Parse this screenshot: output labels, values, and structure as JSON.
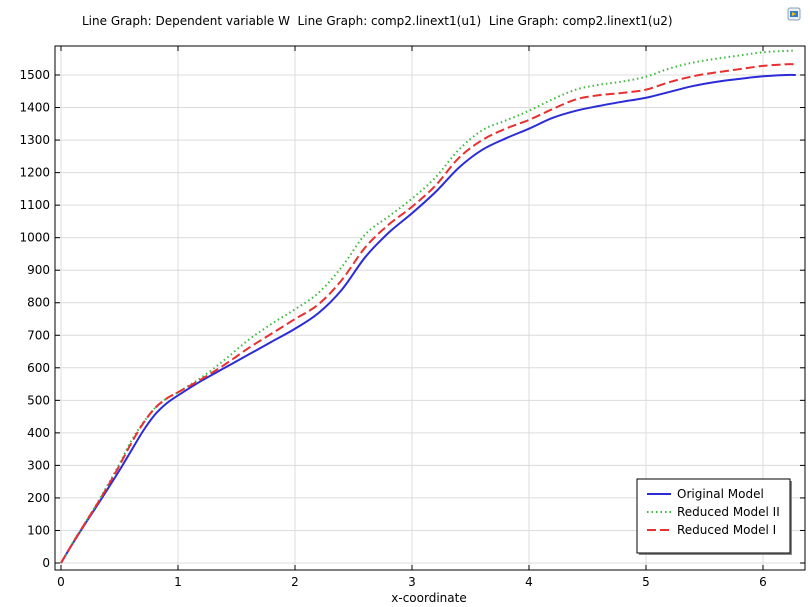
{
  "title": "Line Graph: Dependent variable W  Line Graph: comp2.linext1(u1)  Line Graph: comp2.linext1(u2)",
  "icons": {
    "export": "image-export-icon"
  },
  "chart_data": {
    "type": "line",
    "title": "Line Graph: Dependent variable W  Line Graph: comp2.linext1(u1)  Line Graph: comp2.linext1(u2)",
    "xlabel": "x-coordinate",
    "ylabel": "",
    "xlim": [
      0,
      6.28
    ],
    "ylim": [
      -10,
      1590
    ],
    "xticks": [
      0,
      1,
      2,
      3,
      4,
      5,
      6
    ],
    "yticks": [
      0,
      100,
      200,
      300,
      400,
      500,
      600,
      700,
      800,
      900,
      1000,
      1100,
      1200,
      1300,
      1400,
      1500
    ],
    "grid": true,
    "legend_position": "bottom-right",
    "series": [
      {
        "name": "Original Model",
        "color": "#2b2bd9",
        "style": "solid",
        "x": [
          0,
          0.1,
          0.2,
          0.3,
          0.4,
          0.5,
          0.6,
          0.7,
          0.8,
          0.9,
          1.0,
          1.2,
          1.4,
          1.6,
          1.8,
          2.0,
          2.2,
          2.4,
          2.6,
          2.8,
          3.0,
          3.2,
          3.4,
          3.6,
          3.8,
          4.0,
          4.2,
          4.4,
          4.6,
          4.8,
          5.0,
          5.2,
          5.4,
          5.6,
          5.8,
          6.0,
          6.2,
          6.28
        ],
        "y": [
          0,
          60,
          117,
          172,
          228,
          285,
          345,
          405,
          455,
          490,
          515,
          560,
          600,
          640,
          680,
          720,
          768,
          840,
          940,
          1015,
          1075,
          1140,
          1215,
          1270,
          1305,
          1335,
          1368,
          1390,
          1405,
          1418,
          1430,
          1448,
          1466,
          1479,
          1488,
          1496,
          1500,
          1500
        ]
      },
      {
        "name": "Reduced Model II",
        "color": "#3cb83c",
        "style": "dotted",
        "x": [
          0,
          0.1,
          0.2,
          0.3,
          0.4,
          0.5,
          0.6,
          0.7,
          0.8,
          0.9,
          1.0,
          1.2,
          1.4,
          1.6,
          1.8,
          2.0,
          2.2,
          2.4,
          2.6,
          2.8,
          3.0,
          3.2,
          3.4,
          3.6,
          3.8,
          4.0,
          4.2,
          4.4,
          4.6,
          4.8,
          5.0,
          5.2,
          5.4,
          5.6,
          5.8,
          6.0,
          6.2,
          6.28
        ],
        "y": [
          0,
          62,
          120,
          178,
          240,
          305,
          375,
          430,
          475,
          505,
          525,
          570,
          625,
          685,
          735,
          780,
          830,
          910,
          1010,
          1065,
          1120,
          1185,
          1270,
          1330,
          1360,
          1390,
          1425,
          1455,
          1470,
          1480,
          1495,
          1520,
          1538,
          1550,
          1560,
          1570,
          1574,
          1575
        ]
      },
      {
        "name": "Reduced Model I",
        "color": "#e83030",
        "style": "dashed",
        "x": [
          0,
          0.1,
          0.2,
          0.3,
          0.4,
          0.5,
          0.6,
          0.7,
          0.8,
          0.9,
          1.0,
          1.2,
          1.4,
          1.6,
          1.8,
          2.0,
          2.2,
          2.4,
          2.6,
          2.8,
          3.0,
          3.2,
          3.4,
          3.6,
          3.8,
          4.0,
          4.2,
          4.4,
          4.6,
          4.8,
          5.0,
          5.2,
          5.4,
          5.6,
          5.8,
          6.0,
          6.2,
          6.28
        ],
        "y": [
          0,
          61,
          119,
          176,
          236,
          300,
          368,
          428,
          475,
          505,
          525,
          565,
          610,
          660,
          705,
          750,
          795,
          870,
          970,
          1040,
          1095,
          1160,
          1245,
          1300,
          1335,
          1362,
          1395,
          1425,
          1438,
          1445,
          1455,
          1478,
          1496,
          1508,
          1518,
          1528,
          1533,
          1533
        ]
      }
    ]
  }
}
